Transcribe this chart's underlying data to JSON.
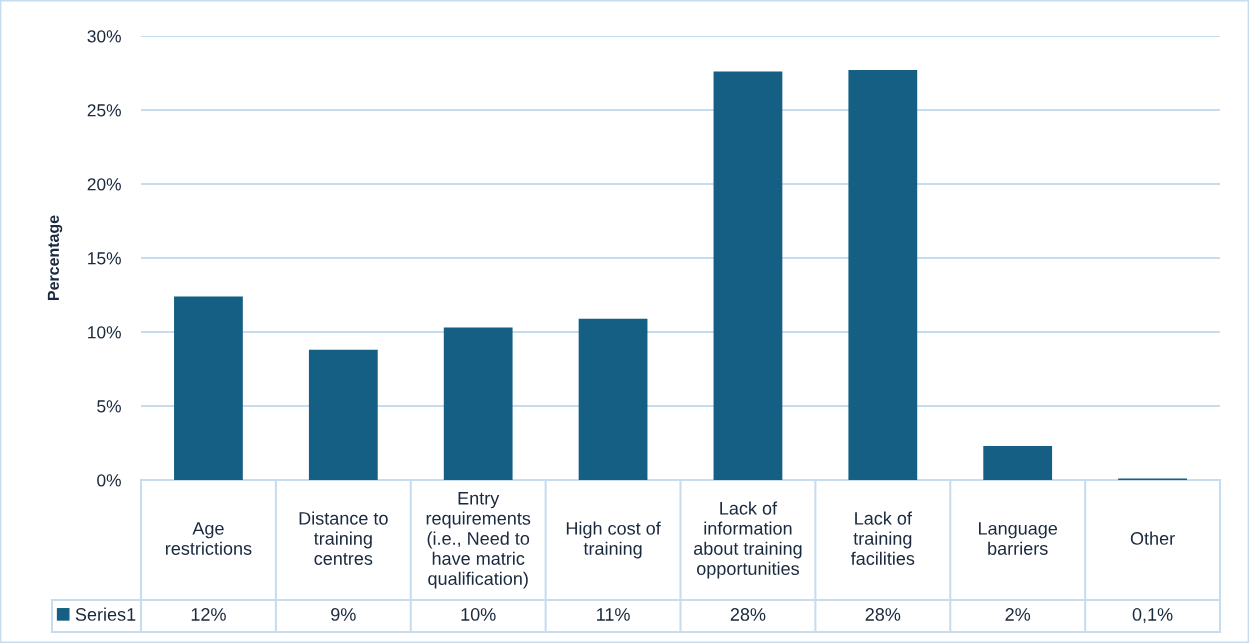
{
  "chart_data": {
    "type": "bar",
    "ylabel": "Percentage",
    "categories": [
      "Age restrictions",
      "Distance to training centres",
      "Entry requirements (i.e., Need to have matric qualification)",
      "High cost of training",
      "Lack of information about training opportunities",
      "Lack of training facilities",
      "Language barriers",
      "Other"
    ],
    "series": [
      {
        "name": "Series1",
        "color": "#145f83",
        "values": [
          12.4,
          8.8,
          10.3,
          10.9,
          27.6,
          27.7,
          2.3,
          0.1
        ],
        "value_labels": [
          "12%",
          "9%",
          "10%",
          "11%",
          "28%",
          "28%",
          "2%",
          "0,1%"
        ]
      }
    ],
    "ylim": [
      0,
      30
    ],
    "yticks": [
      {
        "value": 0,
        "label": "0%"
      },
      {
        "value": 5,
        "label": "5%"
      },
      {
        "value": 10,
        "label": "10%"
      },
      {
        "value": 15,
        "label": "15%"
      },
      {
        "value": 20,
        "label": "20%"
      },
      {
        "value": 25,
        "label": "25%"
      },
      {
        "value": 30,
        "label": "30%"
      }
    ],
    "grid": "y",
    "legend": "bottom left"
  }
}
